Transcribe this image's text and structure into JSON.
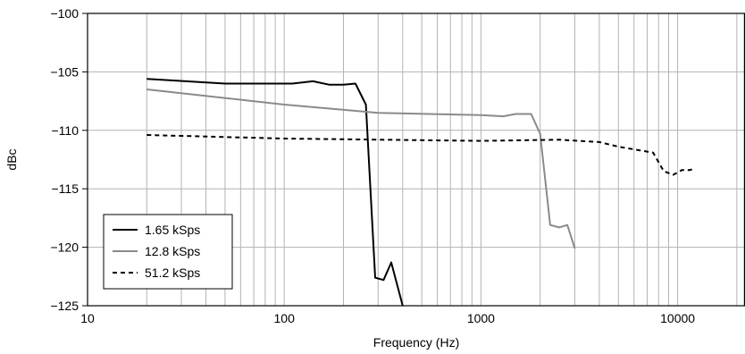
{
  "chart_data": {
    "type": "line",
    "xlabel": "Frequency (Hz)",
    "ylabel": "dBc",
    "xscale": "log",
    "xlim": [
      10,
      22000
    ],
    "ylim": [
      -125,
      -100
    ],
    "x_ticks": [
      {
        "value": 10,
        "label": "10"
      },
      {
        "value": 100,
        "label": "100"
      },
      {
        "value": 1000,
        "label": "1000"
      },
      {
        "value": 10000,
        "label": "10000"
      }
    ],
    "y_ticks": [
      {
        "value": -100,
        "label": "−100"
      },
      {
        "value": -105,
        "label": "−105"
      },
      {
        "value": -110,
        "label": "−110"
      },
      {
        "value": -115,
        "label": "−115"
      },
      {
        "value": -120,
        "label": "−120"
      },
      {
        "value": -125,
        "label": "−125"
      }
    ],
    "grid": true,
    "legend_position": "bottom-left",
    "series": [
      {
        "name": "1.65 kSps",
        "color": "#000000",
        "style": "solid",
        "x": [
          20,
          50,
          100,
          110,
          140,
          170,
          200,
          230,
          260,
          290,
          320,
          350,
          400
        ],
        "y": [
          -105.6,
          -106.0,
          -106.0,
          -106.0,
          -105.8,
          -106.1,
          -106.1,
          -106.0,
          -107.8,
          -122.6,
          -122.8,
          -121.3,
          -125.0
        ]
      },
      {
        "name": "12.8 kSps",
        "color": "#8a8a8a",
        "style": "solid",
        "x": [
          20,
          100,
          300,
          1000,
          1300,
          1500,
          1800,
          2000,
          2250,
          2500,
          2750,
          3000
        ],
        "y": [
          -106.5,
          -107.8,
          -108.5,
          -108.7,
          -108.8,
          -108.6,
          -108.6,
          -110.3,
          -118.1,
          -118.3,
          -118.1,
          -120.1
        ]
      },
      {
        "name": "51.2 kSps",
        "color": "#000000",
        "style": "dashed",
        "x": [
          20,
          100,
          1000,
          2500,
          4000,
          5000,
          7500,
          8500,
          9500,
          10500,
          11500,
          12000
        ],
        "y": [
          -110.4,
          -110.7,
          -110.9,
          -110.8,
          -111.0,
          -111.4,
          -111.9,
          -113.5,
          -113.8,
          -113.4,
          -113.4,
          -113.3
        ]
      }
    ]
  }
}
